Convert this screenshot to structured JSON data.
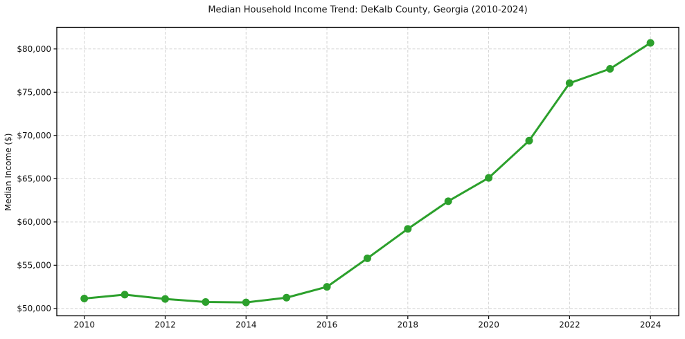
{
  "figure": {
    "background": "#ffffff"
  },
  "chart_data": {
    "type": "line",
    "title": "Median Household Income Trend: DeKalb County, Georgia (2010-2024)",
    "xlabel": "",
    "ylabel": "Median Income ($)",
    "x": [
      2010,
      2011,
      2012,
      2013,
      2014,
      2015,
      2016,
      2017,
      2018,
      2019,
      2020,
      2021,
      2022,
      2023,
      2024
    ],
    "values": [
      51150,
      51600,
      51100,
      50750,
      50700,
      51250,
      52500,
      55800,
      59200,
      62400,
      65100,
      69400,
      76050,
      77700,
      80700
    ],
    "series_name": "Median Household Income",
    "series_color": "#2ca02c",
    "marker": "circle",
    "marker_size": 5.5,
    "line_width": 3,
    "grid": true,
    "grid_style": "dashed",
    "grid_color": "#d2d2d2",
    "spine_color": "#000000",
    "legend": "none",
    "xlim": [
      2009.32,
      2024.7
    ],
    "ylim": [
      49150,
      82500
    ],
    "xticks": {
      "values": [
        2010,
        2012,
        2014,
        2016,
        2018,
        2020,
        2022,
        2024
      ],
      "labels": [
        "2010",
        "2012",
        "2014",
        "2016",
        "2018",
        "2020",
        "2022",
        "2024"
      ]
    },
    "yticks": {
      "values": [
        50000,
        55000,
        60000,
        65000,
        70000,
        75000,
        80000
      ],
      "labels": [
        "$50,000",
        "$55,000",
        "$60,000",
        "$65,000",
        "$70,000",
        "$75,000",
        "$80,000"
      ]
    }
  }
}
